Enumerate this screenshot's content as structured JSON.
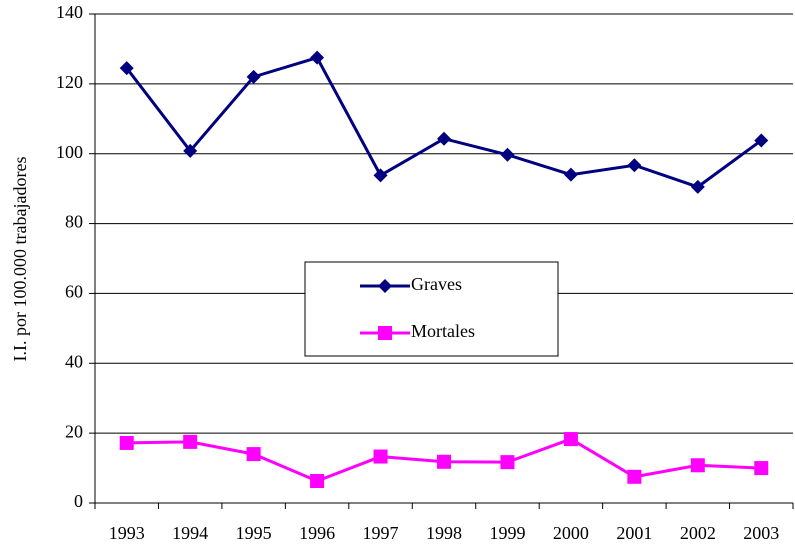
{
  "chart_data": {
    "type": "line",
    "y_label": "I.I.  por 100.000 trabajadores",
    "categories": [
      "1993",
      "1994",
      "1995",
      "1996",
      "1997",
      "1998",
      "1999",
      "2000",
      "2001",
      "2002",
      "2003"
    ],
    "series": [
      {
        "name": "Graves",
        "color": "#000080",
        "marker": "diamond",
        "values": [
          124.5,
          100.8,
          122,
          127.5,
          93.8,
          104.3,
          99.7,
          94,
          96.7,
          90.5,
          103.8
        ]
      },
      {
        "name": "Mortales",
        "color": "#FF00FF",
        "marker": "square",
        "values": [
          17.2,
          17.5,
          14,
          6.3,
          13.3,
          11.8,
          11.7,
          18.3,
          7.5,
          10.8,
          10
        ]
      }
    ],
    "ylim": [
      0,
      140
    ],
    "yticks": [
      0,
      20,
      40,
      60,
      80,
      100,
      120,
      140
    ],
    "grid": true
  }
}
